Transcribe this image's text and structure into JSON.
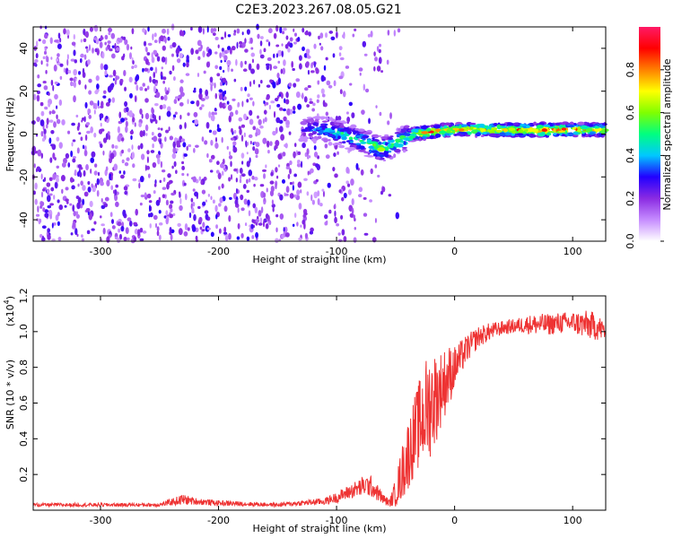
{
  "title": "C2E3.2023.267.08.05.G21",
  "chart_data": [
    {
      "type": "heatmap",
      "xlabel": "Height of straight line (km)",
      "ylabel": "Frequency (Hz)",
      "xlim": [
        -357,
        128
      ],
      "ylim": [
        -50,
        50
      ],
      "xticks": [
        -300,
        -200,
        -100,
        0,
        100
      ],
      "yticks": [
        -40,
        -20,
        0,
        20,
        40
      ],
      "grid": false,
      "colorbar": {
        "label": "Normalized spectral amplitude",
        "range": [
          0.0,
          1.0
        ],
        "ticks": [
          "0.0",
          "0.2",
          "0.4",
          "0.6",
          "0.8"
        ],
        "colors": [
          "#ffffff",
          "#c68cff",
          "#8a2be2",
          "#2200ff",
          "#00c8ff",
          "#00ff80",
          "#80ff00",
          "#ffff00",
          "#ff8000",
          "#ff0000",
          "#ff1a66"
        ]
      },
      "signal_track": {
        "x": [
          -130,
          -110,
          -95,
          -80,
          -70,
          -62,
          -55,
          -45,
          -35,
          -20,
          0,
          40,
          80,
          128
        ],
        "y": [
          3,
          2,
          0,
          -3,
          -5,
          -7,
          -6,
          -3,
          0,
          1,
          2,
          2,
          2,
          2
        ],
        "amplitude": [
          0.3,
          0.45,
          0.5,
          0.55,
          0.6,
          0.6,
          0.55,
          0.6,
          0.7,
          0.85,
          0.75,
          0.8,
          0.9,
          0.75
        ]
      },
      "noise_region": {
        "x": [
          -357,
          -70
        ],
        "amplitude": 0.3
      }
    },
    {
      "type": "line",
      "series_color": "#ee3333",
      "xlabel": "Height of straight line (km)",
      "ylabel": "SNR (10 * v/v)",
      "y_multiplier": "(x10",
      "y_multiplier_exp": "4",
      "xlim": [
        -357,
        128
      ],
      "ylim": [
        0,
        1.2
      ],
      "xticks": [
        -300,
        -200,
        -100,
        0,
        100
      ],
      "yticks": [
        "0.2",
        "0.4",
        "0.6",
        "0.8",
        "1.0",
        "1.2"
      ],
      "grid": false,
      "x": [
        -357,
        -300,
        -250,
        -230,
        -220,
        -200,
        -150,
        -110,
        -100,
        -90,
        -75,
        -70,
        -60,
        -55,
        -50,
        -45,
        -40,
        -35,
        -30,
        -25,
        -20,
        -15,
        -10,
        -5,
        0,
        10,
        20,
        30,
        40,
        50,
        60,
        70,
        80,
        90,
        100,
        110,
        120,
        128
      ],
      "y": [
        0.03,
        0.03,
        0.03,
        0.06,
        0.05,
        0.04,
        0.03,
        0.05,
        0.07,
        0.1,
        0.14,
        0.13,
        0.06,
        0.04,
        0.1,
        0.2,
        0.3,
        0.4,
        0.48,
        0.55,
        0.6,
        0.64,
        0.7,
        0.75,
        0.8,
        0.9,
        0.97,
        1.0,
        1.02,
        1.03,
        1.04,
        1.04,
        1.04,
        1.05,
        1.05,
        1.04,
        1.03,
        1.0
      ],
      "noise": [
        0.01,
        0.01,
        0.01,
        0.03,
        0.02,
        0.015,
        0.01,
        0.02,
        0.03,
        0.04,
        0.06,
        0.06,
        0.03,
        0.02,
        0.08,
        0.15,
        0.2,
        0.22,
        0.25,
        0.3,
        0.3,
        0.25,
        0.2,
        0.18,
        0.12,
        0.08,
        0.06,
        0.05,
        0.04,
        0.04,
        0.05,
        0.06,
        0.06,
        0.06,
        0.06,
        0.08,
        0.08,
        0.05
      ]
    }
  ]
}
